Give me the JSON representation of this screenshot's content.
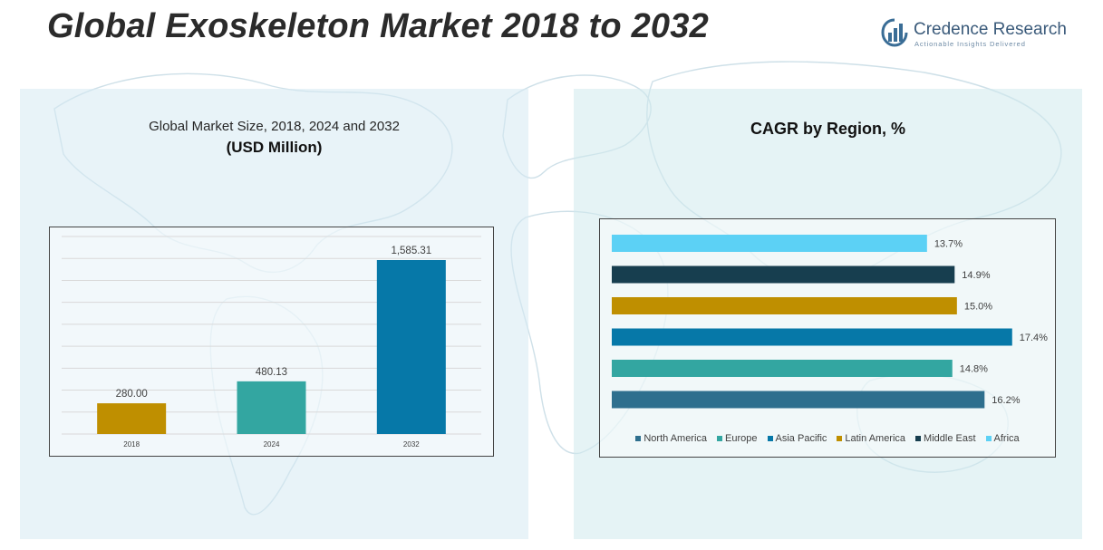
{
  "header": {
    "title": "Global Exoskeleton Market 2018 to 2032",
    "logo_name": "Credence Research",
    "logo_tagline": "Actionable Insights Delivered"
  },
  "colors": {
    "north_america": "#2E6F8E",
    "europe": "#33A6A1",
    "asia_pacific": "#0678A8",
    "latin_america": "#BF8F00",
    "middle_east": "#173E4F",
    "africa": "#5CD1F5"
  },
  "left_panel": {
    "subtitle": "Global Market Size, 2018, 2024 and 2032",
    "unit": "(USD Million)"
  },
  "right_panel": {
    "title": "CAGR by Region, %"
  },
  "chart_data": [
    {
      "type": "bar",
      "title": "Global Market Size, 2018, 2024 and 2032",
      "ylabel": "USD Million",
      "categories": [
        "2018",
        "2024",
        "2032"
      ],
      "values": [
        280.0,
        480.13,
        1585.31
      ],
      "value_labels": [
        "280.00",
        "480.13",
        "1,585.31"
      ],
      "colors": [
        "#BF8F00",
        "#33A6A1",
        "#0678A8"
      ],
      "ylim": [
        0,
        1800
      ],
      "grid": true
    },
    {
      "type": "bar",
      "orientation": "horizontal",
      "title": "CAGR by Region, %",
      "categories": [
        "North America",
        "Europe",
        "Asia Pacific",
        "Latin America",
        "Middle East",
        "Africa"
      ],
      "values": [
        16.2,
        14.8,
        17.4,
        15.0,
        14.9,
        13.7
      ],
      "value_labels": [
        "16.2%",
        "14.8%",
        "17.4%",
        "15.0%",
        "14.9%",
        "13.7%"
      ],
      "colors": [
        "#2E6F8E",
        "#33A6A1",
        "#0678A8",
        "#BF8F00",
        "#173E4F",
        "#5CD1F5"
      ],
      "xlim": [
        0,
        18
      ],
      "legend_position": "bottom"
    }
  ]
}
